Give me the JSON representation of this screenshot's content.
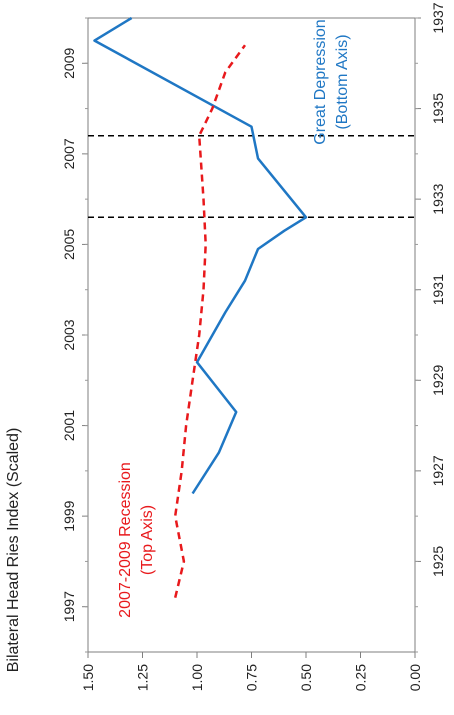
{
  "chart_data": {
    "type": "line",
    "orientation": "rotated-90-counterclockwise",
    "ylabel": "Bilateral Head Ries Index (Scaled)",
    "value_axis": {
      "range": [
        0.0,
        1.5
      ],
      "ticks": [
        "0.00",
        "0.25",
        "0.50",
        "0.75",
        "1.00",
        "1.25",
        "1.50"
      ]
    },
    "top_axis": {
      "range": [
        1996,
        2010
      ],
      "ticks": [
        "1997",
        "1999",
        "2001",
        "2003",
        "2005",
        "2007",
        "2009"
      ]
    },
    "bottom_axis": {
      "range": [
        1923,
        1937
      ],
      "ticks": [
        "1925",
        "1927",
        "1929",
        "1931",
        "1933",
        "1935",
        "1937"
      ]
    },
    "reference_lines": [
      {
        "axis": "top",
        "value": 2007.4
      },
      {
        "axis": "bottom",
        "value": 1932.6
      }
    ],
    "series": [
      {
        "name": "Great Depression (Bottom Axis)",
        "label_lines": [
          "Great Depression",
          "(Bottom Axis)"
        ],
        "axis": "bottom",
        "color": "#1f77c4",
        "style": "solid",
        "x": [
          1926.5,
          1927.4,
          1928.3,
          1929.4,
          1930.5,
          1931.2,
          1931.9,
          1932.3,
          1932.6,
          1933.9,
          1934.6,
          1936.5,
          1937.0
        ],
        "y": [
          1.02,
          0.9,
          0.82,
          1.0,
          0.87,
          0.78,
          0.72,
          0.6,
          0.5,
          0.72,
          0.75,
          1.47,
          1.3
        ]
      },
      {
        "name": "2007-2009 Recession (Top Axis)",
        "label_lines": [
          "2007-2009 Recession",
          "(Top Axis)"
        ],
        "axis": "top",
        "color": "#e8191c",
        "style": "dashed",
        "x": [
          1997.2,
          1998.0,
          1999.0,
          2000.0,
          2001.0,
          2002.0,
          2003.0,
          2004.0,
          2005.0,
          2006.0,
          2007.4,
          2008.0,
          2008.8,
          2009.4
        ],
        "y": [
          1.1,
          1.06,
          1.1,
          1.07,
          1.05,
          1.02,
          0.99,
          0.97,
          0.96,
          0.97,
          0.99,
          0.93,
          0.87,
          0.78
        ]
      }
    ],
    "grid": false,
    "legend": "none"
  }
}
